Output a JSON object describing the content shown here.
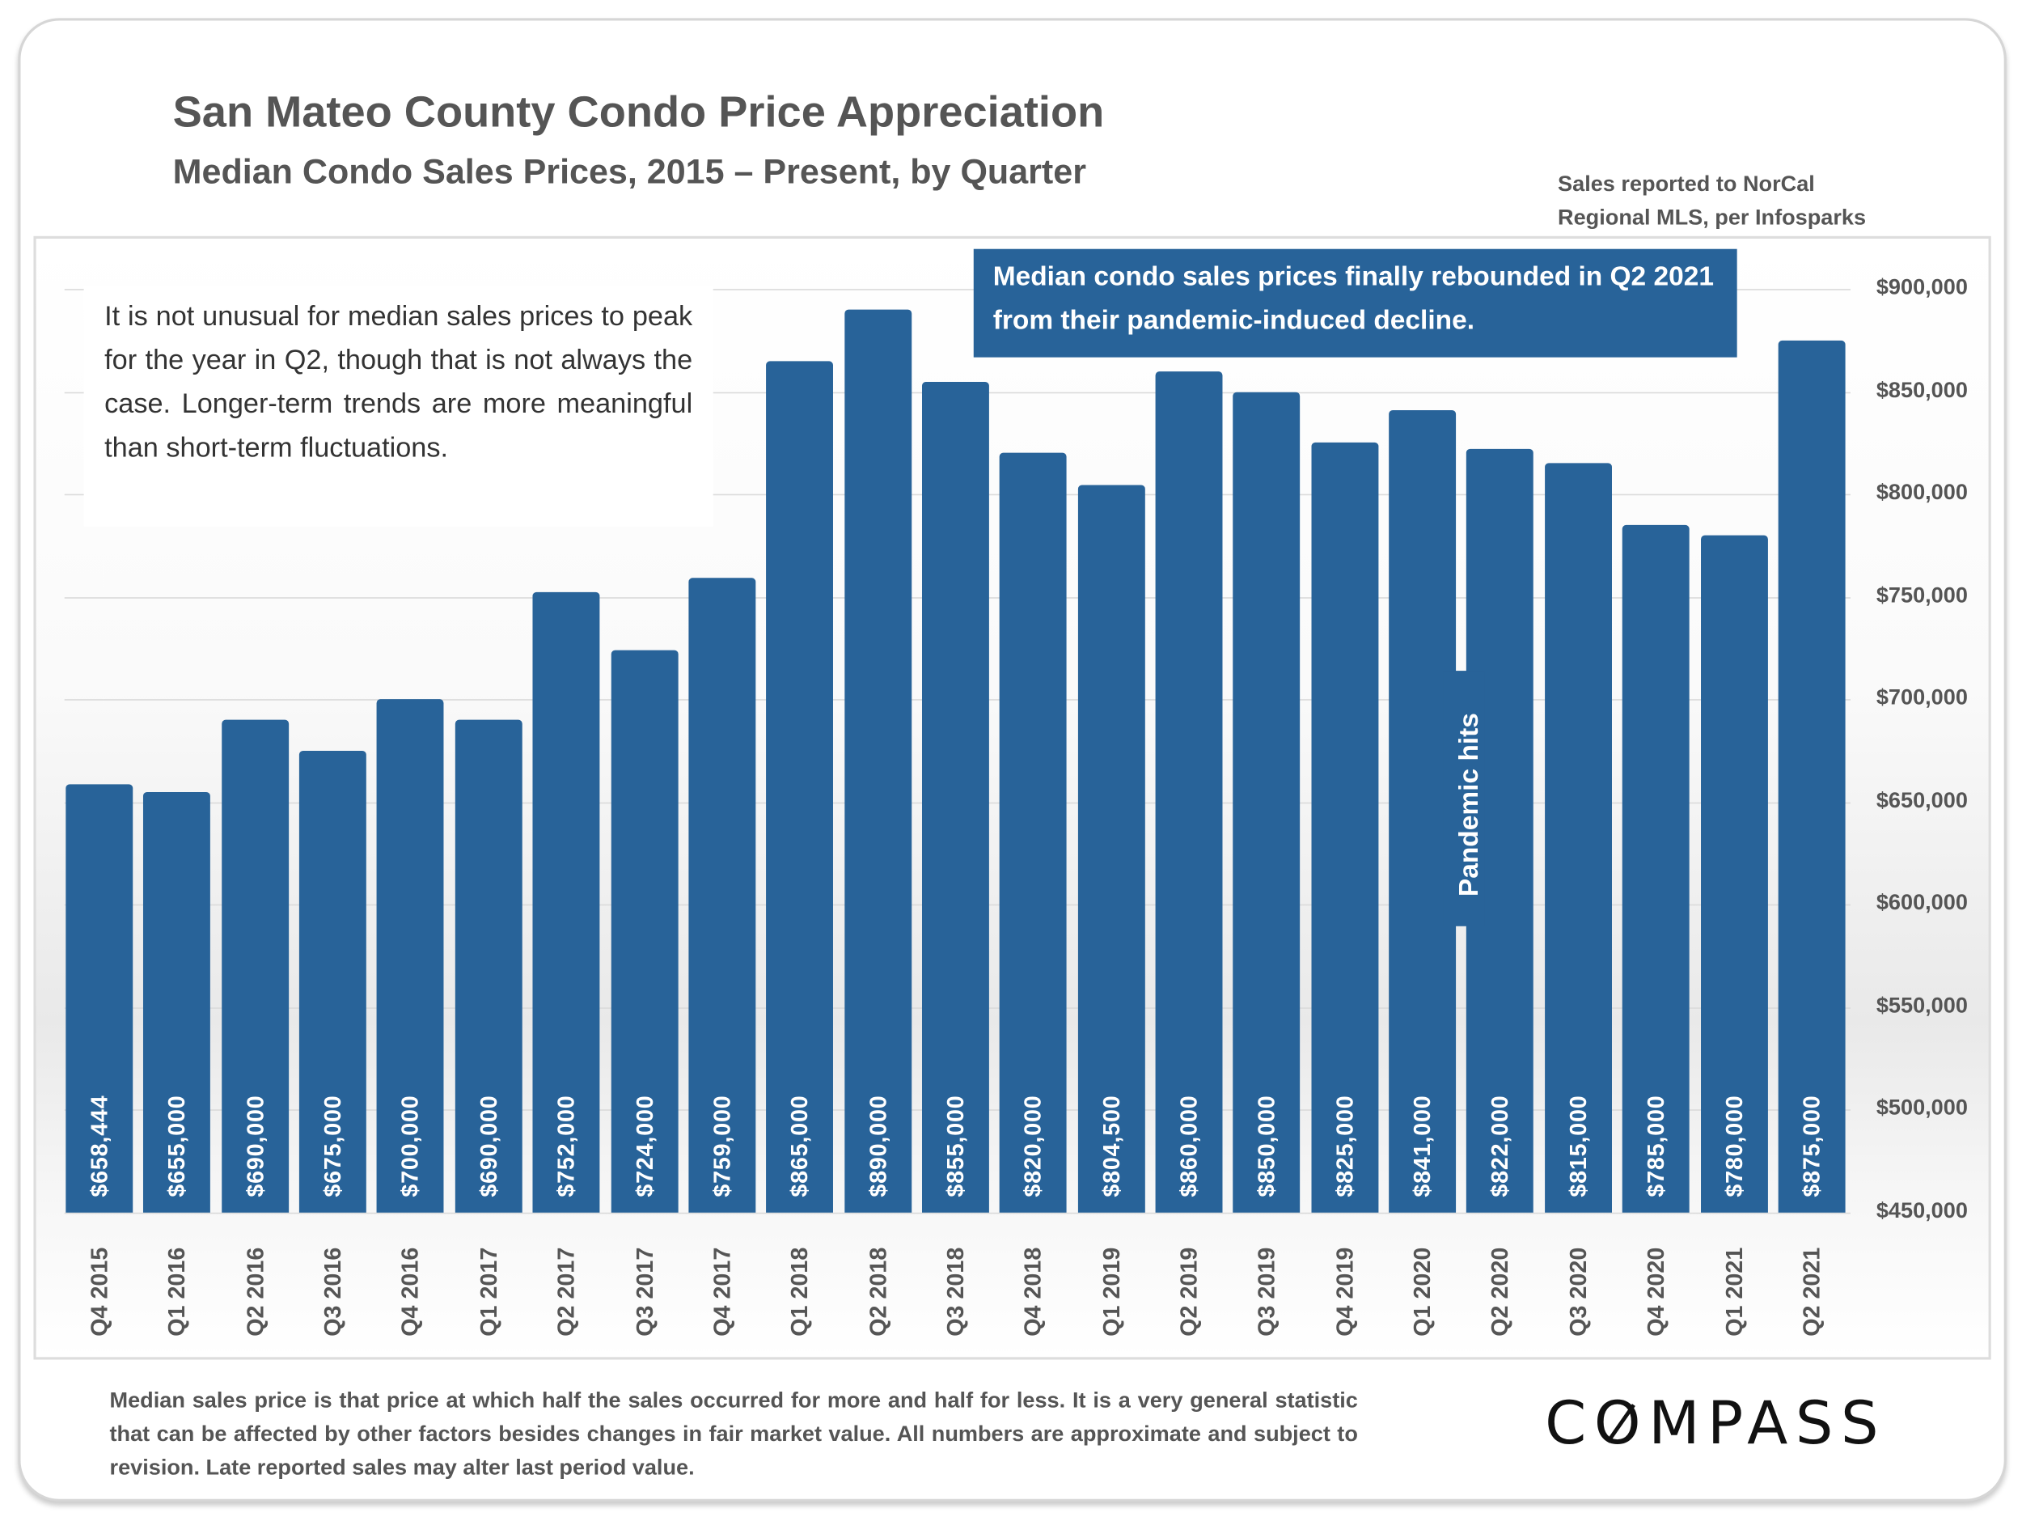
{
  "header": {
    "title": "San Mateo County Condo Price Appreciation",
    "subtitle": "Median Condo Sales Prices, 2015 – Present, by Quarter",
    "source_line1": "Sales reported to NorCal",
    "source_line2": "Regional MLS, per Infosparks"
  },
  "annotations": {
    "note": "It is not unusual for median sales prices to peak for the year in Q2, though that is not always the case. Longer-term trends are more meaningful than short-term fluctuations.",
    "callout": "Median condo sales prices finally rebounded in Q2 2021 from their pandemic-induced decline.",
    "pandemic": "Pandemic hits"
  },
  "footnote": "Median sales price is that price at which half the sales occurred for more and half for less. It is a very general statistic that can be affected by other factors besides changes in fair market value. All numbers are approximate and subject to revision. Late reported sales may alter last period value.",
  "logo": "COMPASS",
  "colors": {
    "bar": "#286399",
    "text": "#555555"
  },
  "chart_data": {
    "type": "bar",
    "title": "San Mateo County Condo Price Appreciation",
    "subtitle": "Median Condo Sales Prices, 2015 – Present, by Quarter",
    "categories": [
      "Q4 2015",
      "Q1 2016",
      "Q2 2016",
      "Q3 2016",
      "Q4 2016",
      "Q1 2017",
      "Q2 2017",
      "Q3 2017",
      "Q4 2017",
      "Q1 2018",
      "Q2 2018",
      "Q3 2018",
      "Q4 2018",
      "Q1 2019",
      "Q2 2019",
      "Q3 2019",
      "Q4 2019",
      "Q1 2020",
      "Q2 2020",
      "Q3 2020",
      "Q4 2020",
      "Q1 2021",
      "Q2 2021"
    ],
    "values": [
      658444,
      655000,
      690000,
      675000,
      700000,
      690000,
      752000,
      724000,
      759000,
      865000,
      890000,
      855000,
      820000,
      804500,
      860000,
      850000,
      825000,
      841000,
      822000,
      815000,
      785000,
      780000,
      875000
    ],
    "data_labels": [
      "$658,444",
      "$655,000",
      "$690,000",
      "$675,000",
      "$700,000",
      "$690,000",
      "$752,000",
      "$724,000",
      "$759,000",
      "$865,000",
      "$890,000",
      "$855,000",
      "$820,000",
      "$804,500",
      "$860,000",
      "$850,000",
      "$825,000",
      "$841,000",
      "$822,000",
      "$815,000",
      "$785,000",
      "$780,000",
      "$875,000"
    ],
    "ylim": [
      450000,
      900000
    ],
    "yticks": [
      450000,
      500000,
      550000,
      600000,
      650000,
      700000,
      750000,
      800000,
      850000,
      900000
    ],
    "ytick_labels": [
      "$450,000",
      "$500,000",
      "$550,000",
      "$600,000",
      "$650,000",
      "$700,000",
      "$750,000",
      "$800,000",
      "$850,000",
      "$900,000"
    ],
    "y_axis_side": "right",
    "grid": true,
    "xlabel": "",
    "ylabel": ""
  }
}
